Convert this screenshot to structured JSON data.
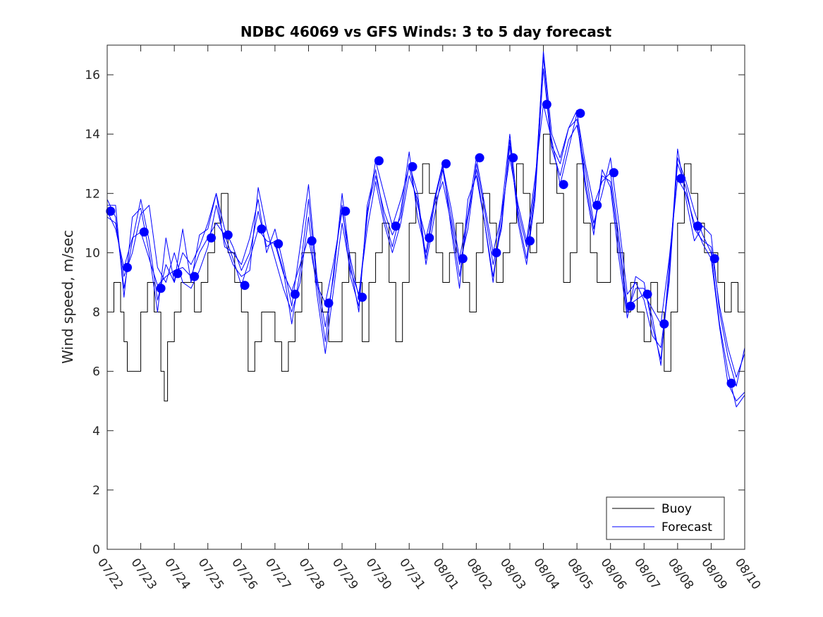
{
  "chart_data": {
    "type": "line",
    "title": "NDBC 46069 vs GFS Winds: 3 to 5 day forecast",
    "xlabel": "",
    "ylabel": "Wind speed, m/sec",
    "xlim": [
      "07/22",
      "08/10"
    ],
    "ylim": [
      0,
      17
    ],
    "yticks": [
      0,
      2,
      4,
      6,
      8,
      10,
      12,
      14,
      16
    ],
    "xticks": [
      "07/22",
      "07/23",
      "07/24",
      "07/25",
      "07/26",
      "07/27",
      "07/28",
      "07/29",
      "07/30",
      "07/31",
      "08/01",
      "08/02",
      "08/03",
      "08/04",
      "08/05",
      "08/06",
      "08/07",
      "08/08",
      "08/09",
      "08/10"
    ],
    "grid": false,
    "legend": {
      "location": "bottom-right",
      "entries": [
        "Buoy",
        "Forecast"
      ]
    },
    "colors": {
      "buoy": "#000000",
      "forecast": "#0000ff",
      "axes": "#262626"
    },
    "series": [
      {
        "name": "Buoy",
        "style": "step",
        "x_days_from_0722": [
          0.0,
          0.2,
          0.4,
          0.5,
          0.6,
          0.8,
          1.0,
          1.2,
          1.4,
          1.6,
          1.7,
          1.8,
          2.0,
          2.2,
          2.4,
          2.6,
          2.8,
          3.0,
          3.2,
          3.4,
          3.6,
          3.8,
          4.0,
          4.2,
          4.4,
          4.6,
          4.8,
          5.0,
          5.2,
          5.4,
          5.6,
          5.8,
          6.0,
          6.2,
          6.4,
          6.6,
          6.8,
          7.0,
          7.2,
          7.4,
          7.6,
          7.8,
          8.0,
          8.2,
          8.4,
          8.6,
          8.8,
          9.0,
          9.2,
          9.4,
          9.6,
          9.8,
          10.0,
          10.2,
          10.4,
          10.6,
          10.8,
          11.0,
          11.2,
          11.4,
          11.6,
          11.8,
          12.0,
          12.2,
          12.4,
          12.6,
          12.8,
          13.0,
          13.2,
          13.4,
          13.6,
          13.8,
          14.0,
          14.2,
          14.4,
          14.6,
          14.8,
          15.0,
          15.2,
          15.4,
          15.6,
          15.8,
          16.0,
          16.2,
          16.4,
          16.6,
          16.8,
          17.0,
          17.2,
          17.4,
          17.6,
          17.8,
          18.0,
          18.2,
          18.4,
          18.6,
          18.8
        ],
        "values": [
          8,
          9,
          8,
          7,
          6,
          6,
          8,
          9,
          8,
          6,
          5,
          7,
          8,
          9,
          9,
          8,
          9,
          10,
          11,
          12,
          10,
          9,
          8,
          6,
          7,
          8,
          8,
          7,
          6,
          7,
          8,
          10,
          10,
          9,
          8,
          7,
          7,
          9,
          10,
          9,
          7,
          9,
          10,
          11,
          9,
          7,
          9,
          11,
          12,
          13,
          12,
          10,
          9,
          10,
          11,
          9,
          8,
          10,
          12,
          11,
          9,
          10,
          11,
          13,
          12,
          10,
          11,
          14,
          13,
          12,
          9,
          10,
          13,
          11,
          10,
          9,
          9,
          11,
          10,
          8,
          9,
          8,
          7,
          9,
          8,
          6,
          8,
          11,
          13,
          12,
          11,
          10,
          10,
          9,
          8,
          9,
          8
        ]
      },
      {
        "name": "Forecast",
        "x_days_from_0722": [
          0.0,
          0.25,
          0.5,
          0.75,
          1.0,
          1.25,
          1.5,
          1.75,
          2.0,
          2.25,
          2.5,
          2.75,
          3.0,
          3.25,
          3.5,
          3.75,
          4.0,
          4.25,
          4.5,
          4.75,
          5.0,
          5.25,
          5.5,
          5.75,
          6.0,
          6.25,
          6.5,
          6.75,
          7.0,
          7.25,
          7.5,
          7.75,
          8.0,
          8.25,
          8.5,
          8.75,
          9.0,
          9.25,
          9.5,
          9.75,
          10.0,
          10.25,
          10.5,
          10.75,
          11.0,
          11.25,
          11.5,
          11.75,
          12.0,
          12.25,
          12.5,
          12.75,
          13.0,
          13.25,
          13.5,
          13.75,
          14.0,
          14.25,
          14.5,
          14.75,
          15.0,
          15.25,
          15.5,
          15.75,
          16.0,
          16.25,
          16.5,
          16.75,
          17.0,
          17.25,
          17.5,
          17.75,
          18.0,
          18.25,
          18.5,
          18.75,
          19.0
        ],
        "values": [
          11.4,
          10.8,
          9.5,
          10.5,
          10.7,
          9.8,
          8.9,
          9.2,
          9.4,
          9.5,
          9.2,
          10.0,
          10.5,
          11.0,
          10.6,
          9.8,
          8.9,
          9.8,
          10.8,
          10.4,
          10.3,
          9.3,
          8.7,
          9.6,
          10.5,
          8.9,
          8.3,
          9.7,
          11.4,
          9.8,
          8.5,
          11.2,
          13.1,
          12.0,
          10.9,
          11.8,
          12.9,
          11.6,
          10.5,
          11.7,
          12.9,
          11.5,
          9.8,
          11.3,
          13.2,
          11.6,
          10.0,
          11.3,
          13.2,
          11.6,
          10.4,
          12.5,
          15.0,
          13.8,
          12.3,
          13.5,
          14.7,
          13.0,
          11.6,
          12.4,
          12.7,
          10.5,
          8.2,
          8.4,
          8.6,
          8.1,
          7.6,
          9.8,
          12.5,
          12.0,
          11.0,
          10.3,
          9.8,
          7.5,
          5.6,
          5.0,
          5.3
        ]
      },
      {
        "name": "",
        "x_days_from_0722": [
          0.0,
          0.25,
          0.5,
          0.75,
          1.0,
          1.25,
          1.5,
          1.75,
          2.0,
          2.25,
          2.5,
          2.75,
          3.0,
          3.25,
          3.5,
          3.75,
          4.0,
          4.25,
          4.5,
          4.75,
          5.0,
          5.25,
          5.5,
          5.75,
          6.0,
          6.25,
          6.5,
          6.75,
          7.0,
          7.25,
          7.5,
          7.75,
          8.0,
          8.25,
          8.5,
          8.75,
          9.0,
          9.25,
          9.5,
          9.75,
          10.0,
          10.25,
          10.5,
          10.75,
          11.0,
          11.25,
          11.5,
          11.75,
          12.0,
          12.25,
          12.5,
          12.75,
          13.0,
          13.25,
          13.5,
          13.75,
          14.0,
          14.25,
          14.5,
          14.75,
          15.0,
          15.25,
          15.5,
          15.75,
          16.0,
          16.25,
          16.5,
          16.75,
          17.0,
          17.25,
          17.5,
          17.75,
          18.0,
          18.25,
          18.5,
          18.75,
          19.0
        ],
        "values": [
          11.6,
          11.6,
          8.5,
          11.2,
          11.5,
          10.0,
          8.0,
          10.5,
          9.0,
          10.8,
          9.0,
          10.6,
          10.8,
          12.0,
          10.2,
          10.0,
          9.6,
          10.5,
          11.8,
          10.0,
          10.8,
          9.6,
          8.2,
          10.2,
          12.3,
          9.2,
          7.5,
          9.2,
          12.0,
          9.6,
          8.0,
          11.6,
          12.8,
          11.2,
          10.2,
          11.4,
          13.4,
          11.2,
          10.0,
          11.8,
          13.0,
          10.8,
          8.8,
          11.8,
          12.6,
          11.0,
          9.2,
          11.0,
          13.6,
          11.2,
          9.8,
          12.0,
          16.8,
          14.0,
          13.2,
          14.2,
          14.5,
          12.2,
          10.6,
          12.8,
          12.2,
          9.8,
          7.8,
          9.2,
          9.0,
          7.5,
          6.4,
          9.2,
          13.5,
          11.8,
          10.4,
          10.9,
          10.6,
          8.0,
          6.5,
          5.5,
          6.8
        ]
      },
      {
        "name": "",
        "x_days_from_0722": [
          0.0,
          0.25,
          0.5,
          0.75,
          1.0,
          1.25,
          1.5,
          1.75,
          2.0,
          2.25,
          2.5,
          2.75,
          3.0,
          3.25,
          3.5,
          3.75,
          4.0,
          4.25,
          4.5,
          4.75,
          5.0,
          5.25,
          5.5,
          5.75,
          6.0,
          6.25,
          6.5,
          6.75,
          7.0,
          7.25,
          7.5,
          7.75,
          8.0,
          8.25,
          8.5,
          8.75,
          9.0,
          9.25,
          9.5,
          9.75,
          10.0,
          10.25,
          10.5,
          10.75,
          11.0,
          11.25,
          11.5,
          11.75,
          12.0,
          12.25,
          12.5,
          12.75,
          13.0,
          13.25,
          13.5,
          13.75,
          14.0,
          14.25,
          14.5,
          14.75,
          15.0,
          15.25,
          15.5,
          15.75,
          16.0,
          16.25,
          16.5,
          16.75,
          17.0,
          17.25,
          17.5,
          17.75,
          18.0,
          18.25,
          18.5,
          18.75,
          19.0
        ],
        "values": [
          11.2,
          11.0,
          9.2,
          10.0,
          11.3,
          11.6,
          9.5,
          9.0,
          10.0,
          9.0,
          8.8,
          9.4,
          10.2,
          11.6,
          10.4,
          9.6,
          9.2,
          9.4,
          12.2,
          10.8,
          9.8,
          8.8,
          8.0,
          9.0,
          11.2,
          8.6,
          6.6,
          8.8,
          11.0,
          9.4,
          8.6,
          10.8,
          12.4,
          11.0,
          10.0,
          11.0,
          12.6,
          11.8,
          9.6,
          11.2,
          12.8,
          11.2,
          9.6,
          10.8,
          13.0,
          11.4,
          9.6,
          10.8,
          13.8,
          11.0,
          9.6,
          11.8,
          16.2,
          13.5,
          12.6,
          13.8,
          14.3,
          12.8,
          11.0,
          12.0,
          13.2,
          11.0,
          8.6,
          9.0,
          8.4,
          7.2,
          6.8,
          9.0,
          13.2,
          12.4,
          11.4,
          10.6,
          10.0,
          7.6,
          6.0,
          4.8,
          5.2
        ]
      },
      {
        "name": "",
        "x_days_from_0722": [
          0.0,
          0.25,
          0.5,
          0.75,
          1.0,
          1.25,
          1.5,
          1.75,
          2.0,
          2.25,
          2.5,
          2.75,
          3.0,
          3.25,
          3.5,
          3.75,
          4.0,
          4.25,
          4.5,
          4.75,
          5.0,
          5.25,
          5.5,
          5.75,
          6.0,
          6.25,
          6.5,
          6.75,
          7.0,
          7.25,
          7.5,
          7.75,
          8.0,
          8.25,
          8.5,
          8.75,
          9.0,
          9.25,
          9.5,
          9.75,
          10.0,
          10.25,
          10.5,
          10.75,
          11.0,
          11.25,
          11.5,
          11.75,
          12.0,
          12.25,
          12.5,
          12.75,
          13.0,
          13.25,
          13.5,
          13.75,
          14.0,
          14.25,
          14.5,
          14.75,
          15.0,
          15.25,
          15.5,
          15.75,
          16.0,
          16.25,
          16.5,
          16.75,
          17.0,
          17.25,
          17.5,
          17.75,
          18.0,
          18.25,
          18.5,
          18.75,
          19.0
        ],
        "values": [
          11.8,
          11.2,
          8.8,
          10.4,
          11.8,
          10.4,
          8.4,
          9.6,
          9.0,
          10.0,
          9.6,
          10.2,
          11.0,
          12.0,
          10.8,
          10.2,
          9.4,
          10.0,
          11.4,
          10.2,
          10.4,
          9.4,
          7.6,
          9.4,
          11.8,
          9.0,
          7.0,
          9.4,
          11.6,
          9.2,
          8.2,
          11.4,
          12.6,
          11.4,
          10.6,
          11.2,
          13.0,
          12.0,
          9.8,
          11.6,
          12.4,
          11.0,
          9.2,
          11.2,
          12.8,
          11.0,
          9.0,
          11.4,
          14.0,
          11.4,
          10.2,
          12.2,
          16.6,
          13.6,
          13.0,
          14.2,
          14.8,
          12.4,
          10.8,
          12.6,
          12.4,
          10.2,
          8.0,
          8.8,
          8.8,
          7.8,
          6.2,
          9.6,
          13.0,
          12.2,
          10.8,
          10.4,
          10.2,
          8.2,
          6.8,
          5.8,
          6.6
        ]
      }
    ],
    "markers": {
      "name": "Forecast",
      "color": "#0000ff",
      "x_days_from_0722": [
        0.1,
        0.6,
        1.1,
        1.6,
        2.1,
        2.6,
        3.1,
        3.6,
        4.1,
        4.6,
        5.1,
        5.6,
        6.1,
        6.6,
        7.1,
        7.6,
        8.1,
        8.6,
        9.1,
        9.6,
        10.1,
        10.6,
        11.1,
        11.6,
        12.1,
        12.6,
        13.1,
        13.6,
        14.1,
        14.6,
        15.1,
        15.6,
        16.1,
        16.6,
        17.1,
        17.6,
        18.1,
        18.6
      ],
      "values": [
        11.4,
        9.5,
        10.7,
        8.8,
        9.3,
        9.2,
        10.5,
        10.6,
        8.9,
        10.8,
        10.3,
        8.6,
        10.4,
        8.3,
        11.4,
        8.5,
        13.1,
        10.9,
        12.9,
        10.5,
        13.0,
        9.8,
        13.2,
        10.0,
        13.2,
        10.4,
        15.0,
        12.3,
        14.7,
        11.6,
        12.7,
        8.2,
        8.6,
        7.6,
        12.5,
        10.9,
        9.8,
        5.6
      ]
    }
  }
}
